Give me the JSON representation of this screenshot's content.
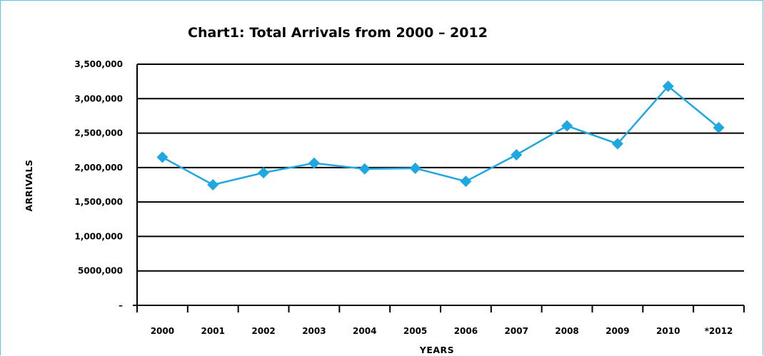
{
  "chart_data": {
    "type": "line",
    "title": "Chart1: Total Arrivals from 2000 – 2012",
    "xlabel": "YEARS",
    "ylabel": "ARRIVALS",
    "categories": [
      "2000",
      "2001",
      "2002",
      "2003",
      "2004",
      "2005",
      "2006",
      "2007",
      "2008",
      "2009",
      "2010",
      "*2012"
    ],
    "series": [
      {
        "values": [
          2150000,
          1750000,
          1925000,
          2065000,
          1980000,
          1990000,
          1800000,
          2185000,
          2605000,
          2345000,
          3180000,
          2580000
        ]
      }
    ],
    "ylim": [
      0,
      3500000
    ],
    "ytick_labels": [
      "–",
      "5000,000",
      "1,000,000",
      "1,500,000",
      "2,000,000",
      "2,500,000",
      "3,000,000",
      "3,500,000"
    ],
    "grid": true,
    "legend": "none",
    "colors": {
      "line": "#1ea7e1",
      "marker": "#1ea7e1",
      "grid": "#000000",
      "frame": "#5bc0eb"
    }
  }
}
